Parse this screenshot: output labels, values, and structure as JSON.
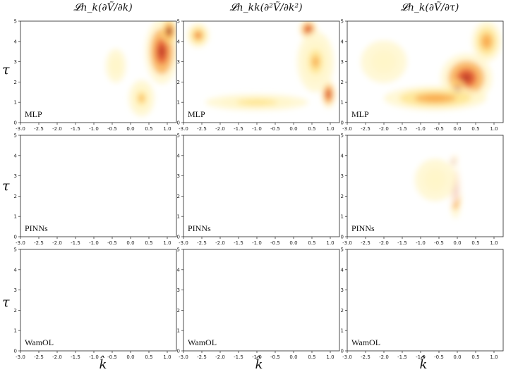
{
  "column_titles": [
    "𝓛h_k(∂Ṽ/∂k)",
    "𝓛h_kk(∂²Ṽ/∂k²)",
    "𝓛h_k(∂Ṽ/∂τ)"
  ],
  "row_ylabel": "τ",
  "xlabel": "k̂",
  "chart_data": {
    "type": "heatmap",
    "x_ticks": [
      "-3.0",
      "-2.5",
      "-2.0",
      "-1.5",
      "-1.0",
      "-0.5",
      "0.0",
      "0.5",
      "1.0"
    ],
    "y_ticks": [
      "0",
      "1",
      "2",
      "3",
      "4",
      "5"
    ],
    "xlim": [
      -3.0,
      1.25
    ],
    "ylim": [
      0,
      5
    ],
    "rows": [
      "MLP",
      "PINNs",
      "WamOL"
    ],
    "colormap": [
      "#ffffff",
      "#fff6c8",
      "#fde38a",
      "#f8a84a",
      "#e4532a",
      "#b8322a",
      "#3b2424"
    ],
    "panels": [
      {
        "row": "MLP",
        "col": 0,
        "intensity": "high",
        "description_blobs": [
          {
            "k": 0.85,
            "tau": 3.5,
            "spread_k": 0.45,
            "spread_tau": 1.6,
            "value": 0.8
          },
          {
            "k": 1.05,
            "tau": 4.5,
            "spread_k": 0.2,
            "spread_tau": 0.6,
            "value": 1.0
          },
          {
            "k": 0.3,
            "tau": 1.2,
            "spread_k": 0.35,
            "spread_tau": 0.9,
            "value": 0.45
          },
          {
            "k": -0.4,
            "tau": 2.8,
            "spread_k": 0.4,
            "spread_tau": 1.2,
            "value": 0.2
          }
        ]
      },
      {
        "row": "MLP",
        "col": 1,
        "intensity": "high",
        "description_blobs": [
          {
            "k": 0.4,
            "tau": 4.6,
            "spread_k": 0.25,
            "spread_tau": 0.5,
            "value": 0.85
          },
          {
            "k": 0.95,
            "tau": 1.4,
            "spread_k": 0.2,
            "spread_tau": 0.7,
            "value": 0.85
          },
          {
            "k": -2.6,
            "tau": 4.3,
            "spread_k": 0.3,
            "spread_tau": 0.6,
            "value": 0.6
          },
          {
            "k": -1.0,
            "tau": 1.0,
            "spread_k": 1.4,
            "spread_tau": 0.4,
            "value": 0.35
          },
          {
            "k": 0.6,
            "tau": 3.0,
            "spread_k": 0.5,
            "spread_tau": 1.5,
            "value": 0.45
          }
        ]
      },
      {
        "row": "MLP",
        "col": 2,
        "intensity": "high",
        "description_blobs": [
          {
            "k": 0.25,
            "tau": 2.2,
            "spread_k": 0.7,
            "spread_tau": 1.2,
            "value": 0.85
          },
          {
            "k": 0.0,
            "tau": 1.6,
            "spread_k": 0.25,
            "spread_tau": 0.5,
            "value": 1.0
          },
          {
            "k": -0.6,
            "tau": 1.2,
            "spread_k": 1.4,
            "spread_tau": 0.6,
            "value": 0.5
          },
          {
            "k": 0.8,
            "tau": 4.0,
            "spread_k": 0.4,
            "spread_tau": 1.0,
            "value": 0.55
          },
          {
            "k": -2.0,
            "tau": 3.0,
            "spread_k": 0.9,
            "spread_tau": 1.5,
            "value": 0.2
          }
        ]
      },
      {
        "row": "PINNs",
        "col": 0,
        "intensity": "none",
        "description_blobs": []
      },
      {
        "row": "PINNs",
        "col": 1,
        "intensity": "none",
        "description_blobs": []
      },
      {
        "row": "PINNs",
        "col": 2,
        "intensity": "medium",
        "description_blobs": [
          {
            "k": -0.05,
            "tau": 2.3,
            "spread_k": 0.18,
            "spread_tau": 1.4,
            "value": 0.85
          },
          {
            "k": -0.1,
            "tau": 3.7,
            "spread_k": 0.12,
            "spread_tau": 0.3,
            "value": 1.0
          },
          {
            "k": -0.6,
            "tau": 2.8,
            "spread_k": 0.8,
            "spread_tau": 1.5,
            "value": 0.2
          }
        ]
      },
      {
        "row": "WamOL",
        "col": 0,
        "intensity": "none",
        "description_blobs": []
      },
      {
        "row": "WamOL",
        "col": 1,
        "intensity": "none",
        "description_blobs": []
      },
      {
        "row": "WamOL",
        "col": 2,
        "intensity": "none",
        "description_blobs": []
      }
    ]
  }
}
